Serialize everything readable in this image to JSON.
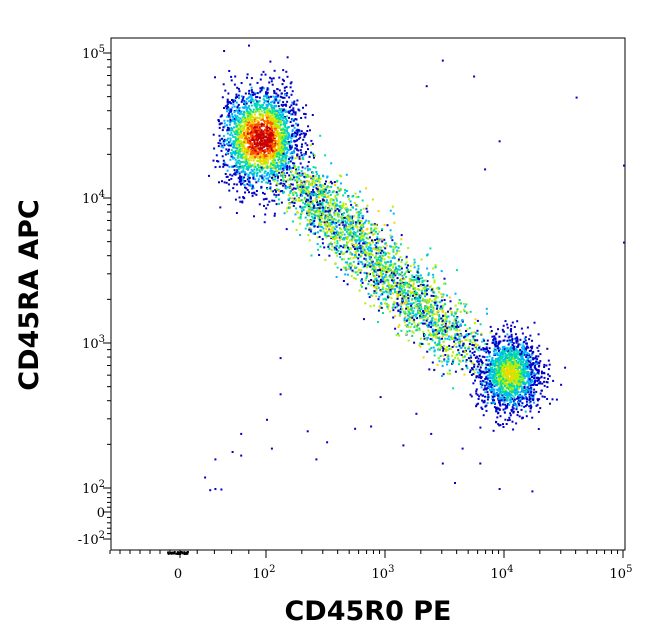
{
  "chart_data": {
    "type": "scatter",
    "title": "",
    "xlabel": "CD45R0 PE",
    "ylabel": "CD45RA APC",
    "x_scale": "logicle",
    "y_scale": "logicle",
    "xlim": [
      -150,
      100000
    ],
    "ylim": [
      -150,
      100000
    ],
    "x_ticks": [
      {
        "value": 0,
        "base": "0",
        "exp": ""
      },
      {
        "value": 100,
        "base": "10",
        "exp": "2"
      },
      {
        "value": 1000,
        "base": "10",
        "exp": "3"
      },
      {
        "value": 10000,
        "base": "10",
        "exp": "4"
      },
      {
        "value": 100000,
        "base": "10",
        "exp": "5"
      }
    ],
    "y_ticks": [
      {
        "value": 100000,
        "base": "10",
        "exp": "5"
      },
      {
        "value": 10000,
        "base": "10",
        "exp": "4"
      },
      {
        "value": 1000,
        "base": "10",
        "exp": "3"
      },
      {
        "value": 100,
        "base": "10",
        "exp": "2"
      },
      {
        "value": 0,
        "base": "0",
        "exp": ""
      },
      {
        "value": -100,
        "base": "-10",
        "exp": "2"
      }
    ],
    "grid": false,
    "legend": "none",
    "color_scale": [
      "#0000c8",
      "#00b4ff",
      "#00e0a0",
      "#b4f000",
      "#ffd000",
      "#ff5000",
      "#c80000"
    ],
    "populations": [
      {
        "center": [
          95,
          26000
        ],
        "cells": 2300,
        "peak_density": "high"
      },
      {
        "center": [
          600,
          4200
        ],
        "cells": 2600,
        "peak_density": "medium"
      },
      {
        "center": [
          11000,
          620
        ],
        "cells": 1700,
        "peak_density": "medium"
      }
    ],
    "sparse_events": [
      [
        3000,
        90000
      ],
      [
        5500,
        70000
      ],
      [
        9000,
        25000
      ],
      [
        6800,
        16000
      ],
      [
        2200,
        60000
      ],
      [
        40000,
        50000
      ],
      [
        100000,
        17000
      ],
      [
        100000,
        5000
      ],
      [
        130,
        800
      ],
      [
        130,
        450
      ],
      [
        28,
        120
      ],
      [
        40,
        160
      ],
      [
        60,
        180
      ],
      [
        70,
        170
      ],
      [
        110,
        190
      ],
      [
        220,
        250
      ],
      [
        260,
        160
      ],
      [
        550,
        260
      ],
      [
        750,
        270
      ],
      [
        900,
        430
      ],
      [
        1400,
        200
      ],
      [
        1800,
        330
      ],
      [
        2400,
        240
      ],
      [
        3800,
        110
      ],
      [
        4400,
        190
      ],
      [
        6200,
        150
      ],
      [
        17000,
        90
      ],
      [
        34,
        95
      ],
      [
        40,
        100
      ],
      [
        47,
        98
      ],
      [
        70,
        240
      ],
      [
        100,
        300
      ],
      [
        320,
        210
      ],
      [
        3000,
        150
      ],
      [
        9000,
        100
      ]
    ]
  }
}
